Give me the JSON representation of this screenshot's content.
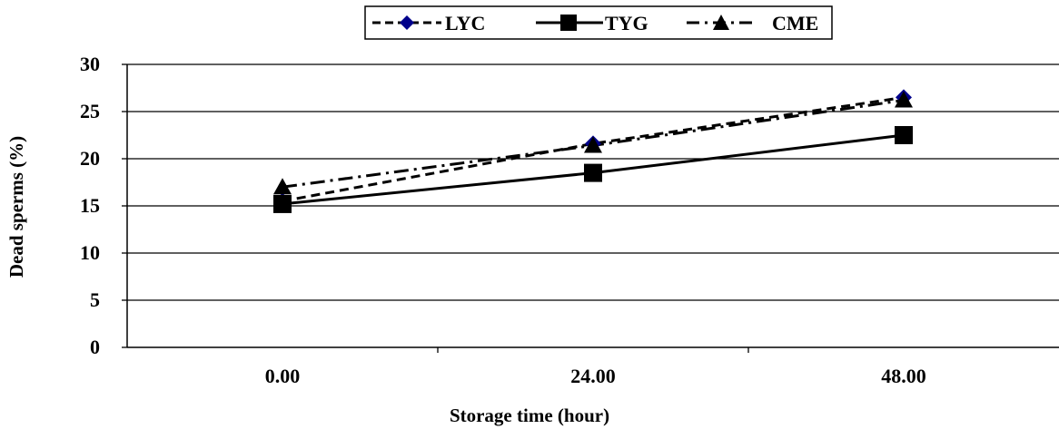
{
  "chart_data": {
    "type": "line",
    "categories": [
      "0.00",
      "24.00",
      "48.00"
    ],
    "xlabel": "Storage time (hour)",
    "ylabel": "Dead sperms (%)",
    "ylim": [
      0,
      30
    ],
    "yticks": [
      "0",
      "5",
      "10",
      "15",
      "20",
      "25",
      "30"
    ],
    "grid": "horizontal",
    "legend_position": "top-center",
    "series": [
      {
        "name": "LYC",
        "values": [
          15.5,
          21.6,
          26.5
        ],
        "marker": "diamond",
        "line_style": "dashed",
        "color": "#00008b"
      },
      {
        "name": "TYG",
        "values": [
          15.2,
          18.5,
          22.5
        ],
        "marker": "square",
        "line_style": "solid",
        "color": "#000000"
      },
      {
        "name": "CME",
        "values": [
          17.0,
          21.4,
          26.2
        ],
        "marker": "triangle",
        "line_style": "dash-dot",
        "color": "#000000"
      }
    ]
  }
}
